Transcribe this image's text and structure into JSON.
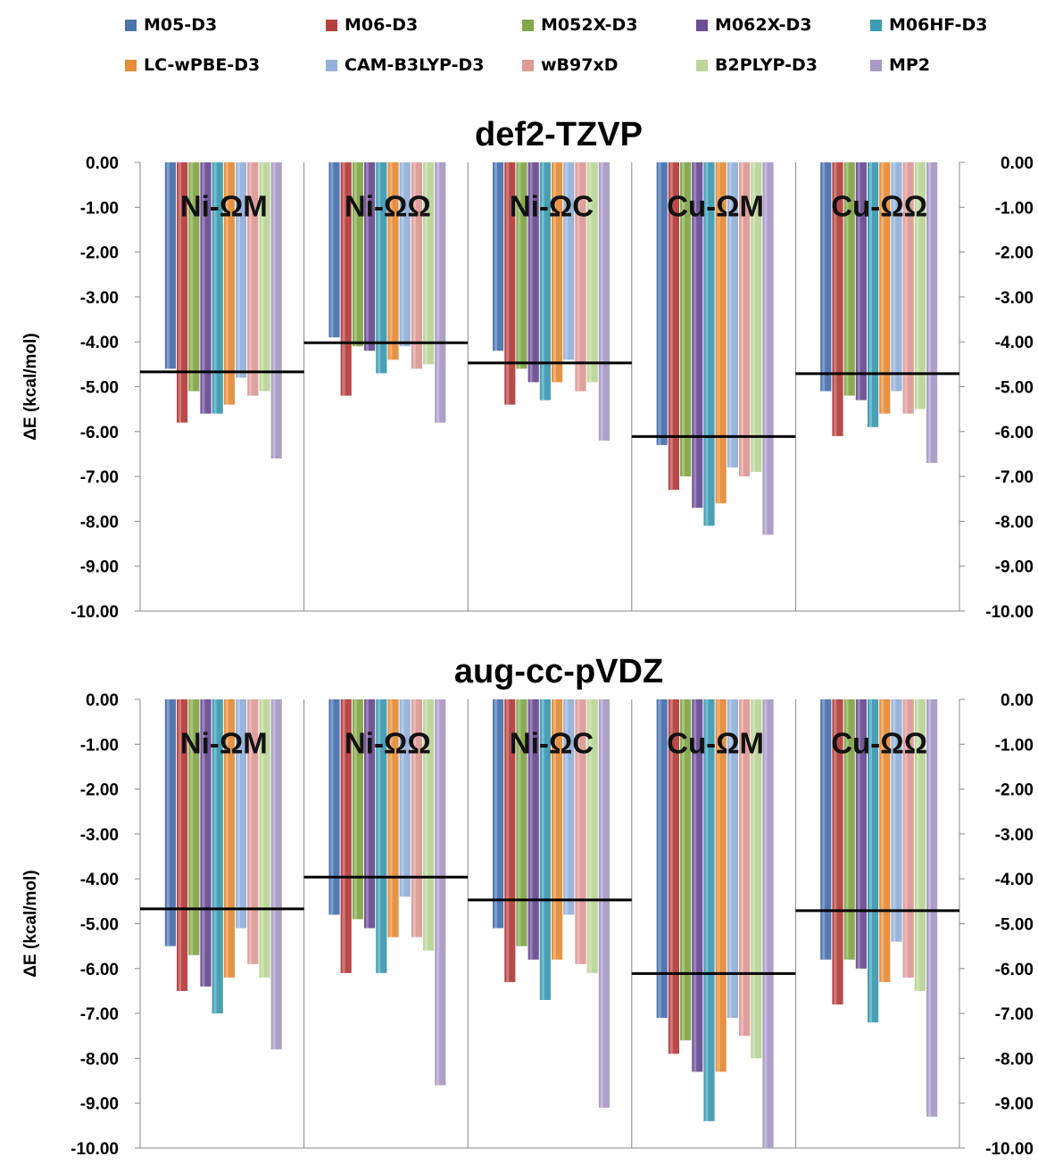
{
  "legend": [
    {
      "name": "M05-D3",
      "color": "#4a72b0"
    },
    {
      "name": "M06-D3",
      "color": "#b5403f"
    },
    {
      "name": "M052X-D3",
      "color": "#84a64a"
    },
    {
      "name": "M062X-D3",
      "color": "#6b4e94"
    },
    {
      "name": "M06HF-D3",
      "color": "#3e9bb3"
    },
    {
      "name": "LC-wPBE-D3",
      "color": "#e68d3a"
    },
    {
      "name": "CAM-B3LYP-D3",
      "color": "#94b1da"
    },
    {
      "name": "wB97xD",
      "color": "#dd9a98"
    },
    {
      "name": "B2PLYP-D3",
      "color": "#bcd598"
    },
    {
      "name": "MP2",
      "color": "#a99ac6"
    }
  ],
  "chart_data": [
    {
      "type": "bar",
      "title": "def2-TZVP",
      "ylabel": "ΔE (kcal/mol)",
      "ylim": [
        -10,
        0
      ],
      "yticks": [
        "0.00",
        "-1.00",
        "-2.00",
        "-3.00",
        "-4.00",
        "-5.00",
        "-6.00",
        "-7.00",
        "-8.00",
        "-9.00",
        "-10.00"
      ],
      "categories": [
        "Ni-ΩM",
        "Ni-ΩΩ",
        "Ni-ΩC",
        "Cu-ΩM",
        "Cu-ΩΩ"
      ],
      "series": [
        {
          "name": "M05-D3",
          "values": [
            -4.6,
            -3.9,
            -4.2,
            -6.3,
            -5.1
          ]
        },
        {
          "name": "M06-D3",
          "values": [
            -5.8,
            -5.2,
            -5.4,
            -7.3,
            -6.1
          ]
        },
        {
          "name": "M052X-D3",
          "values": [
            -5.1,
            -4.1,
            -4.6,
            -7.0,
            -5.2
          ]
        },
        {
          "name": "M062X-D3",
          "values": [
            -5.6,
            -4.2,
            -4.9,
            -7.7,
            -5.3
          ]
        },
        {
          "name": "M06HF-D3",
          "values": [
            -5.6,
            -4.7,
            -5.3,
            -8.1,
            -5.9
          ]
        },
        {
          "name": "LC-wPBE-D3",
          "values": [
            -5.4,
            -4.4,
            -4.9,
            -7.6,
            -5.6
          ]
        },
        {
          "name": "CAM-B3LYP-D3",
          "values": [
            -4.8,
            -4.1,
            -4.4,
            -6.8,
            -5.1
          ]
        },
        {
          "name": "wB97xD",
          "values": [
            -5.2,
            -4.6,
            -5.1,
            -7.0,
            -5.6
          ]
        },
        {
          "name": "B2PLYP-D3",
          "values": [
            -5.1,
            -4.5,
            -4.9,
            -6.9,
            -5.5
          ]
        },
        {
          "name": "MP2",
          "values": [
            -6.6,
            -5.8,
            -6.2,
            -8.3,
            -6.7
          ]
        }
      ],
      "reference": [
        -4.67,
        -4.02,
        -4.47,
        -6.11,
        -4.71
      ]
    },
    {
      "type": "bar",
      "title": "aug-cc-pVDZ",
      "ylabel": "ΔE (kcal/mol)",
      "ylim": [
        -10,
        0
      ],
      "yticks": [
        "0.00",
        "-1.00",
        "-2.00",
        "-3.00",
        "-4.00",
        "-5.00",
        "-6.00",
        "-7.00",
        "-8.00",
        "-9.00",
        "-10.00"
      ],
      "categories": [
        "Ni-ΩM",
        "Ni-ΩΩ",
        "Ni-ΩC",
        "Cu-ΩM",
        "Cu-ΩΩ"
      ],
      "series": [
        {
          "name": "M05-D3",
          "values": [
            -5.5,
            -4.8,
            -5.1,
            -7.1,
            -5.8
          ]
        },
        {
          "name": "M06-D3",
          "values": [
            -6.5,
            -6.1,
            -6.3,
            -7.9,
            -6.8
          ]
        },
        {
          "name": "M052X-D3",
          "values": [
            -5.7,
            -4.9,
            -5.5,
            -7.6,
            -5.8
          ]
        },
        {
          "name": "M062X-D3",
          "values": [
            -6.4,
            -5.1,
            -5.8,
            -8.3,
            -6.0
          ]
        },
        {
          "name": "M06HF-D3",
          "values": [
            -7.0,
            -6.1,
            -6.7,
            -9.4,
            -7.2
          ]
        },
        {
          "name": "LC-wPBE-D3",
          "values": [
            -6.2,
            -5.3,
            -5.8,
            -8.3,
            -6.3
          ]
        },
        {
          "name": "CAM-B3LYP-D3",
          "values": [
            -5.1,
            -4.4,
            -4.8,
            -7.1,
            -5.4
          ]
        },
        {
          "name": "wB97xD",
          "values": [
            -5.9,
            -5.3,
            -5.9,
            -7.5,
            -6.2
          ]
        },
        {
          "name": "B2PLYP-D3",
          "values": [
            -6.2,
            -5.6,
            -6.1,
            -8.0,
            -6.5
          ]
        },
        {
          "name": "MP2",
          "values": [
            -7.8,
            -8.6,
            -9.1,
            -10.0,
            -9.3
          ]
        }
      ],
      "reference": [
        -4.67,
        -3.96,
        -4.47,
        -6.11,
        -4.71
      ]
    }
  ]
}
